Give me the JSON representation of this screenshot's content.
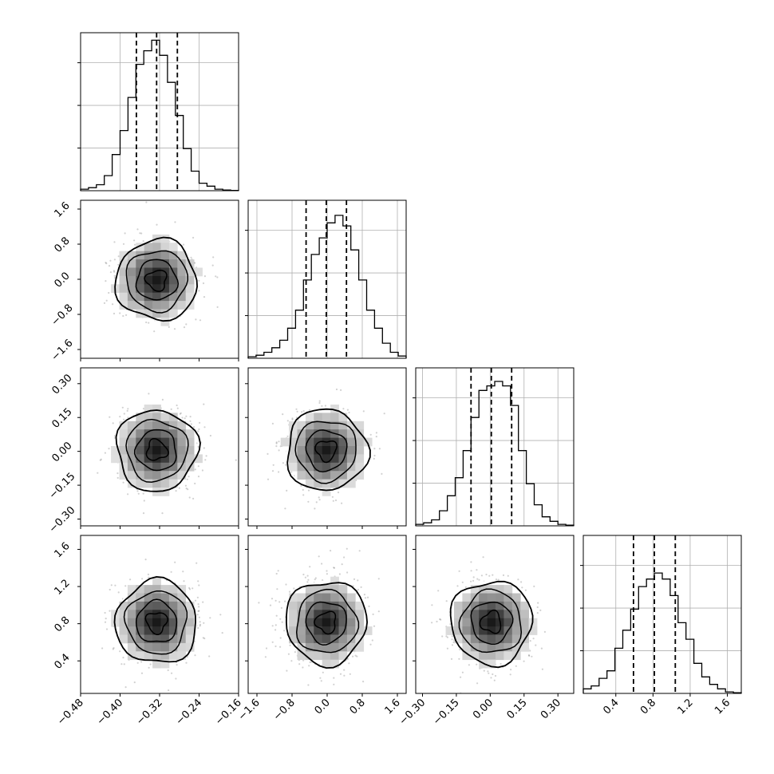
{
  "chart_data": {
    "type": "corner",
    "description": "Corner plot of 4 parameters: 1D marginal histograms on diagonal with dashed quantile lines, 2D scatter/density/contour panels below diagonal.",
    "grid": true,
    "parameters": [
      {
        "range": [
          -0.48,
          -0.16
        ],
        "ticks": [
          -0.48,
          -0.4,
          -0.32,
          -0.24,
          -0.16
        ],
        "tick_labels": [
          "−0.48",
          "−0.40",
          "−0.32",
          "−0.24",
          "−0.16"
        ],
        "quantiles": [
          -0.367,
          -0.326,
          -0.284
        ],
        "hist_counts": [
          0.01,
          0.02,
          0.04,
          0.1,
          0.24,
          0.4,
          0.62,
          0.84,
          0.93,
          1.0,
          0.9,
          0.72,
          0.5,
          0.28,
          0.13,
          0.05,
          0.03,
          0.01,
          0.005,
          0.002
        ],
        "hist_range": [
          -0.48,
          -0.16
        ]
      },
      {
        "range": [
          -1.8,
          1.8
        ],
        "ticks": [
          -1.6,
          -0.8,
          0.0,
          0.8,
          1.6
        ],
        "tick_labels": [
          "−1.6",
          "−0.8",
          "0.0",
          "0.8",
          "1.6"
        ],
        "quantiles": [
          -0.48,
          -0.02,
          0.44
        ],
        "hist_counts": [
          0.01,
          0.02,
          0.04,
          0.07,
          0.12,
          0.2,
          0.32,
          0.52,
          0.69,
          0.8,
          0.9,
          0.95,
          0.88,
          0.72,
          0.52,
          0.32,
          0.2,
          0.1,
          0.04,
          0.015
        ],
        "hist_range": [
          -1.8,
          1.8
        ]
      },
      {
        "range": [
          -0.33,
          0.37
        ],
        "ticks": [
          -0.3,
          -0.15,
          0.0,
          0.15,
          0.3
        ],
        "tick_labels": [
          "−0.30",
          "−0.15",
          "0.00",
          "0.15",
          "0.30"
        ],
        "quantiles": [
          -0.085,
          0.005,
          0.095
        ],
        "hist_counts": [
          0.01,
          0.02,
          0.04,
          0.1,
          0.2,
          0.32,
          0.5,
          0.72,
          0.9,
          0.93,
          0.96,
          0.93,
          0.8,
          0.5,
          0.28,
          0.14,
          0.06,
          0.03,
          0.01,
          0.005
        ],
        "hist_range": [
          -0.33,
          0.37
        ]
      },
      {
        "range": [
          0.05,
          1.75
        ],
        "ticks": [
          0.4,
          0.8,
          1.2,
          1.6
        ],
        "tick_labels": [
          "0.4",
          "0.8",
          "1.2",
          "1.6"
        ],
        "quantiles": [
          0.59,
          0.815,
          1.04
        ],
        "hist_counts": [
          0.03,
          0.05,
          0.1,
          0.15,
          0.3,
          0.42,
          0.56,
          0.71,
          0.76,
          0.8,
          0.76,
          0.65,
          0.47,
          0.36,
          0.2,
          0.11,
          0.06,
          0.03,
          0.01,
          0.005
        ],
        "hist_range": [
          0.05,
          1.75
        ]
      }
    ],
    "means": [
      -0.326,
      -0.02,
      0.005,
      0.815
    ],
    "stds": [
      0.041,
      0.46,
      0.09,
      0.225
    ]
  }
}
